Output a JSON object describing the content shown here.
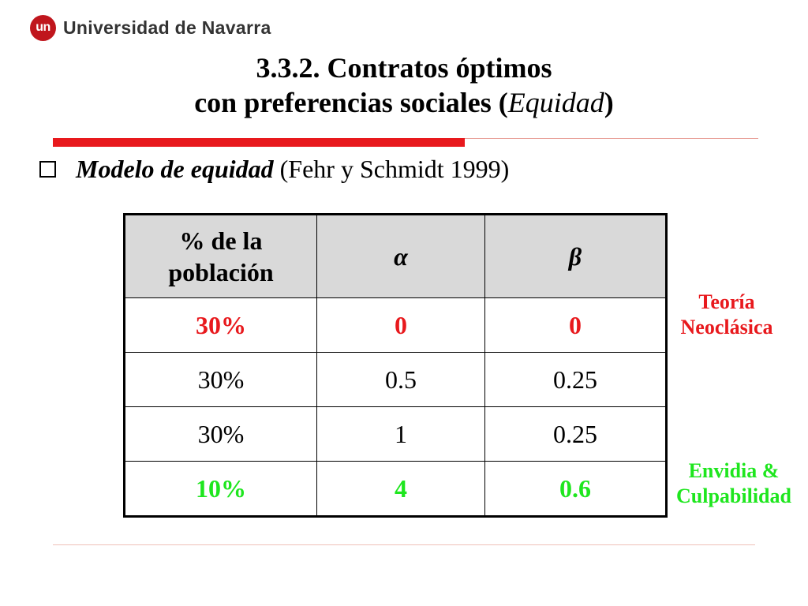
{
  "header": {
    "logo_badge": "un",
    "logo_text": "Universidad de Navarra"
  },
  "title": {
    "line1": "3.3.2. Contratos óptimos",
    "line2_prefix": "con preferencias sociales (",
    "line2_italic": "Equidad",
    "line2_suffix": ")"
  },
  "bullet": {
    "italic": "Modelo de equidad",
    "rest": " (Fehr y Schmidt 1999)"
  },
  "table": {
    "headers": [
      "% de la población",
      "α",
      "β"
    ],
    "rows": [
      [
        "30%",
        "0",
        "0"
      ],
      [
        "30%",
        "0.5",
        "0.25"
      ],
      [
        "30%",
        "1",
        "0.25"
      ],
      [
        "10%",
        "4",
        "0.6"
      ]
    ]
  },
  "annotations": {
    "neoclassical": [
      "Teoría",
      "Neoclásica"
    ],
    "envy": [
      "Envidia &",
      "Culpabilidad"
    ]
  },
  "colors": {
    "accent_red": "#e8191d",
    "accent_green": "#1ee61e",
    "header_gray": "#d9d9d9",
    "logo_red": "#c0161d"
  }
}
